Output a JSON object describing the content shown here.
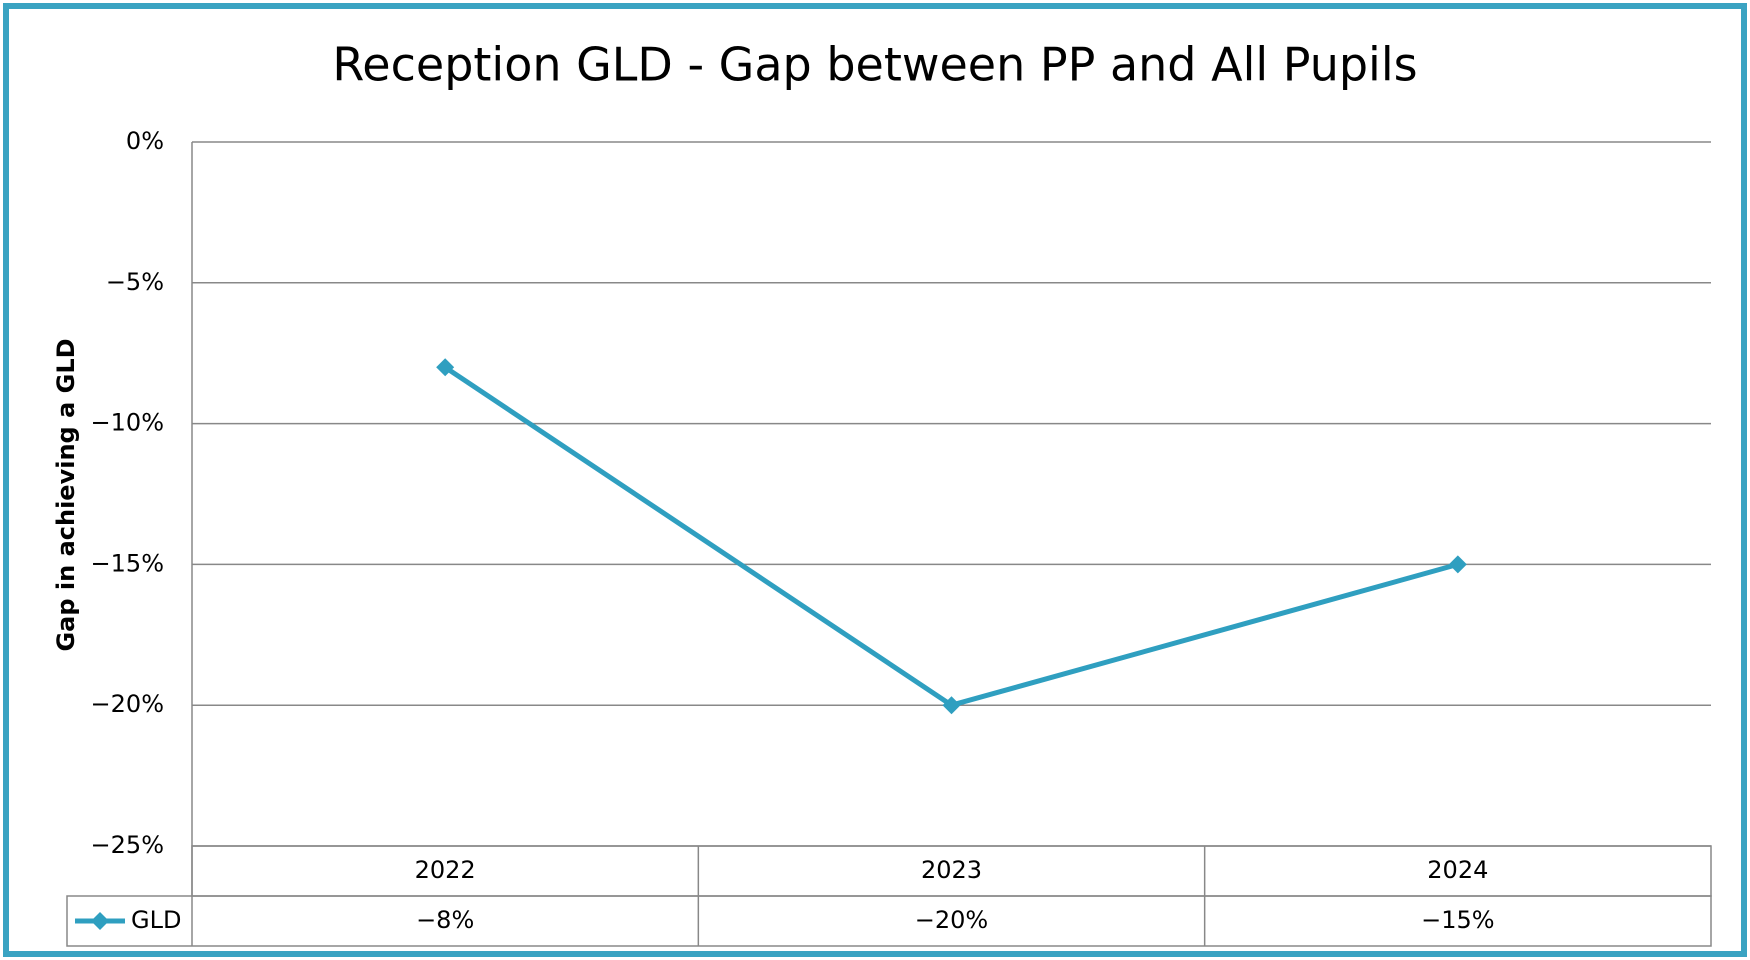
{
  "chart_data": {
    "type": "line",
    "title": "Reception GLD - Gap between PP and  All Pupils",
    "y_label": "Gap in achieving a GLD",
    "categories": [
      "2022",
      "2023",
      "2024"
    ],
    "series": [
      {
        "name": "GLD",
        "color": "#2f9fc0",
        "values": [
          -8,
          -20,
          -15
        ],
        "value_labels": [
          "−8%",
          "−20%",
          "−15%"
        ]
      }
    ],
    "ylim": [
      -25,
      0
    ],
    "yticks": [
      {
        "value": 0,
        "label": "0%"
      },
      {
        "value": -5,
        "label": "−5%"
      },
      {
        "value": -10,
        "label": "−10%"
      },
      {
        "value": -15,
        "label": "−15%"
      },
      {
        "value": -20,
        "label": "−20%"
      },
      {
        "value": -25,
        "label": "−25%"
      }
    ],
    "grid": true,
    "data_table": true
  }
}
